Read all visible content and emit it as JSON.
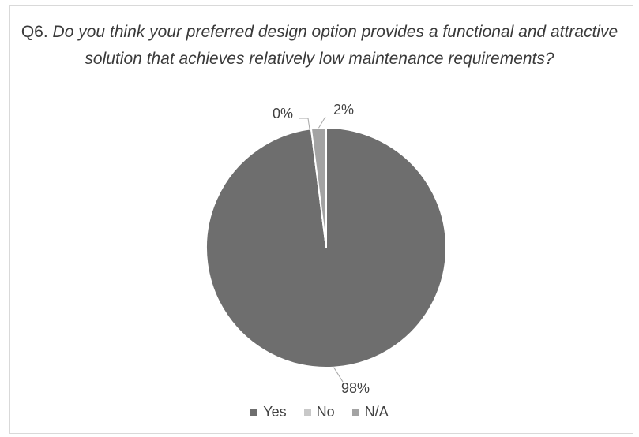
{
  "chart_data": {
    "type": "pie",
    "title_prefix": "Q6.",
    "title": "Do you think your preferred design option provides a functional and attractive solution that achieves relatively low maintenance requirements?",
    "categories": [
      "Yes",
      "No",
      "N/A"
    ],
    "values": [
      98,
      0,
      2
    ],
    "data_labels": [
      "98%",
      "0%",
      "2%"
    ],
    "colors": [
      "#6e6e6e",
      "#c8c8c8",
      "#a3a3a3"
    ],
    "legend_position": "bottom"
  }
}
